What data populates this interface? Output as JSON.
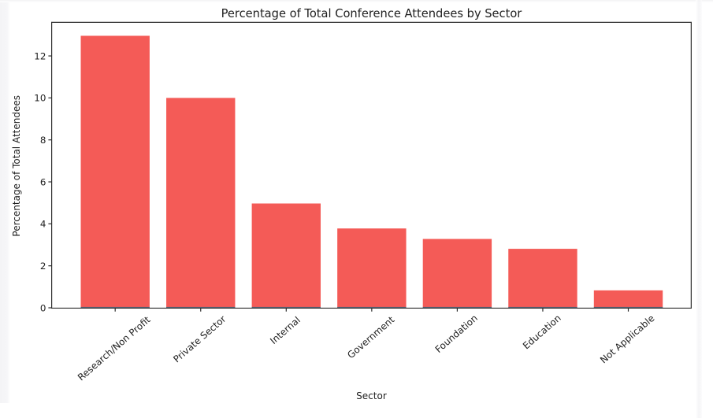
{
  "chart_data": {
    "type": "bar",
    "title": "Percentage of Total Conference Attendees by Sector",
    "xlabel": "Sector",
    "ylabel": "Percentage of Total Attendees",
    "categories": [
      "Research/Non Profit",
      "Private Sector",
      "Internal",
      "Government",
      "Foundation",
      "Education",
      "Not Applicable"
    ],
    "values": [
      12.96,
      10.0,
      4.97,
      3.78,
      3.28,
      2.81,
      0.83
    ],
    "yticks": [
      0,
      2,
      4,
      6,
      8,
      10,
      12
    ],
    "ylim": [
      0,
      13.6
    ],
    "bar_color": "#f45b57",
    "axis_color": "#2e2e2e",
    "text_color": "#1f1f1f",
    "grid": false,
    "legend": false,
    "x_tick_rotation_deg": 41
  }
}
